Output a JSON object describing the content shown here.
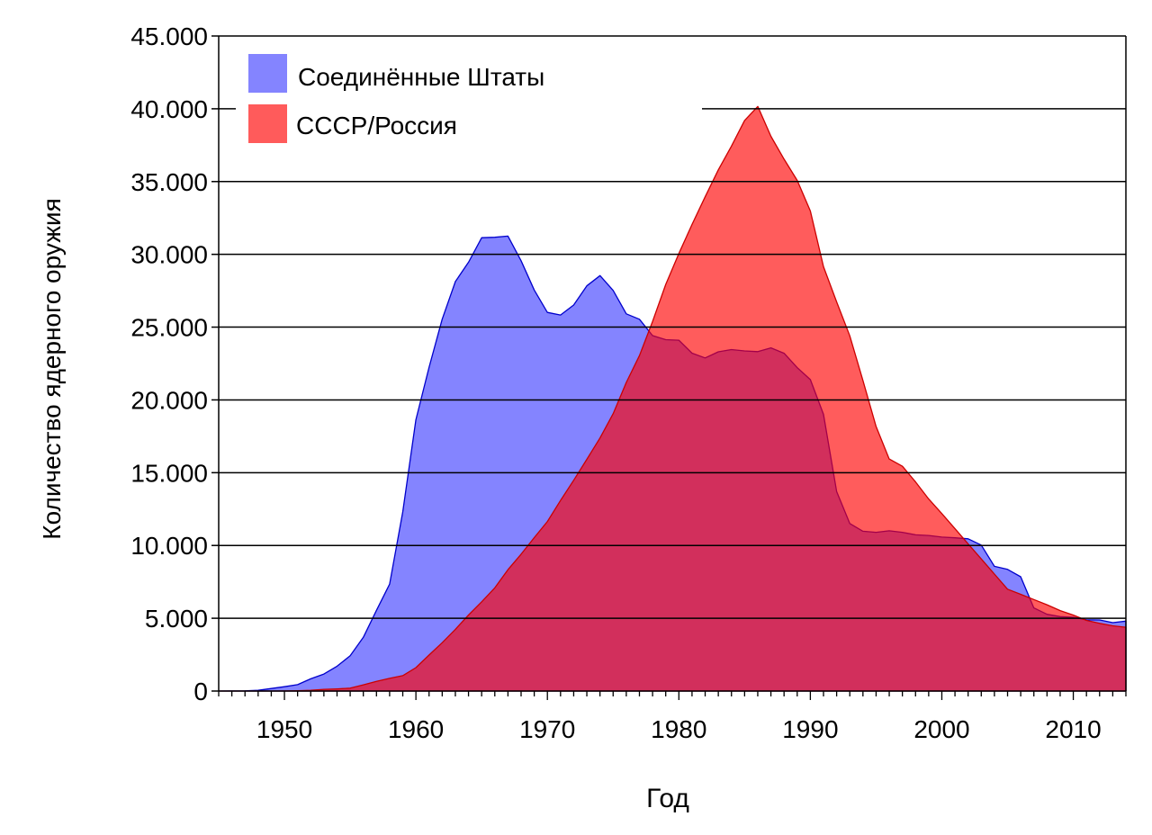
{
  "chart_data": {
    "type": "area",
    "title": "",
    "xlabel": "Год",
    "ylabel": "Количество ядерного оружия",
    "xlim": [
      1945,
      2014
    ],
    "ylim": [
      0,
      45000
    ],
    "x_ticks": [
      1950,
      1960,
      1970,
      1980,
      1990,
      2000,
      2010
    ],
    "y_ticks": [
      0,
      5000,
      10000,
      15000,
      20000,
      25000,
      30000,
      35000,
      40000,
      45000
    ],
    "y_tick_labels": [
      "0",
      "5.000",
      "10.000",
      "15.000",
      "20.000",
      "25.000",
      "30.000",
      "35.000",
      "40.000",
      "45.000"
    ],
    "grid": "horizontal",
    "legend_position": "top-left",
    "x": [
      1945,
      1946,
      1947,
      1948,
      1949,
      1950,
      1951,
      1952,
      1953,
      1954,
      1955,
      1956,
      1957,
      1958,
      1959,
      1960,
      1961,
      1962,
      1963,
      1964,
      1965,
      1966,
      1967,
      1968,
      1969,
      1970,
      1971,
      1972,
      1973,
      1974,
      1975,
      1976,
      1977,
      1978,
      1979,
      1980,
      1981,
      1982,
      1983,
      1984,
      1985,
      1986,
      1987,
      1988,
      1989,
      1990,
      1991,
      1992,
      1993,
      1994,
      1995,
      1996,
      1997,
      1998,
      1999,
      2000,
      2001,
      2002,
      2003,
      2004,
      2005,
      2006,
      2007,
      2008,
      2009,
      2010,
      2011,
      2012,
      2013,
      2014
    ],
    "series": [
      {
        "name": "Соединённые Штаты",
        "color": "#8484ff",
        "stroke": "#0000cc",
        "values": [
          2,
          9,
          13,
          50,
          170,
          299,
          438,
          841,
          1169,
          1703,
          2422,
          3692,
          5543,
          7345,
          12298,
          18638,
          22229,
          25540,
          28133,
          29463,
          31139,
          31175,
          31255,
          29561,
          27552,
          26008,
          25830,
          26516,
          27835,
          28537,
          27519,
          25914,
          25542,
          24418,
          24138,
          24104,
          23208,
          22886,
          23305,
          23459,
          23368,
          23317,
          23575,
          23205,
          22217,
          21392,
          19008,
          13708,
          11511,
          10979,
          10904,
          11011,
          10903,
          10732,
          10685,
          10577,
          10526,
          10457,
          10027,
          8570,
          8360,
          7853,
          5709,
          5273,
          5113,
          5066,
          4897,
          4881,
          4700,
          4800
        ]
      },
      {
        "name": "СССР/Россия",
        "color": "#ff5b5b",
        "stroke": "#cc0000",
        "values": [
          0,
          0,
          0,
          0,
          1,
          5,
          25,
          50,
          120,
          150,
          200,
          426,
          660,
          869,
          1060,
          1605,
          2471,
          3322,
          4238,
          5221,
          6129,
          7089,
          8339,
          9399,
          10538,
          11643,
          13092,
          14478,
          15915,
          17385,
          19055,
          21205,
          23044,
          25393,
          27935,
          30062,
          32049,
          33952,
          35804,
          37431,
          39197,
          40159,
          38107,
          36538,
          35078,
          32980,
          29154,
          26734,
          24403,
          21339,
          18179,
          15942,
          15442,
          14368,
          13188,
          12188,
          11152,
          10114,
          9076,
          8038,
          7000,
          6643,
          6286,
          5929,
          5527,
          5215,
          4850,
          4650,
          4480,
          4380
        ]
      }
    ]
  }
}
